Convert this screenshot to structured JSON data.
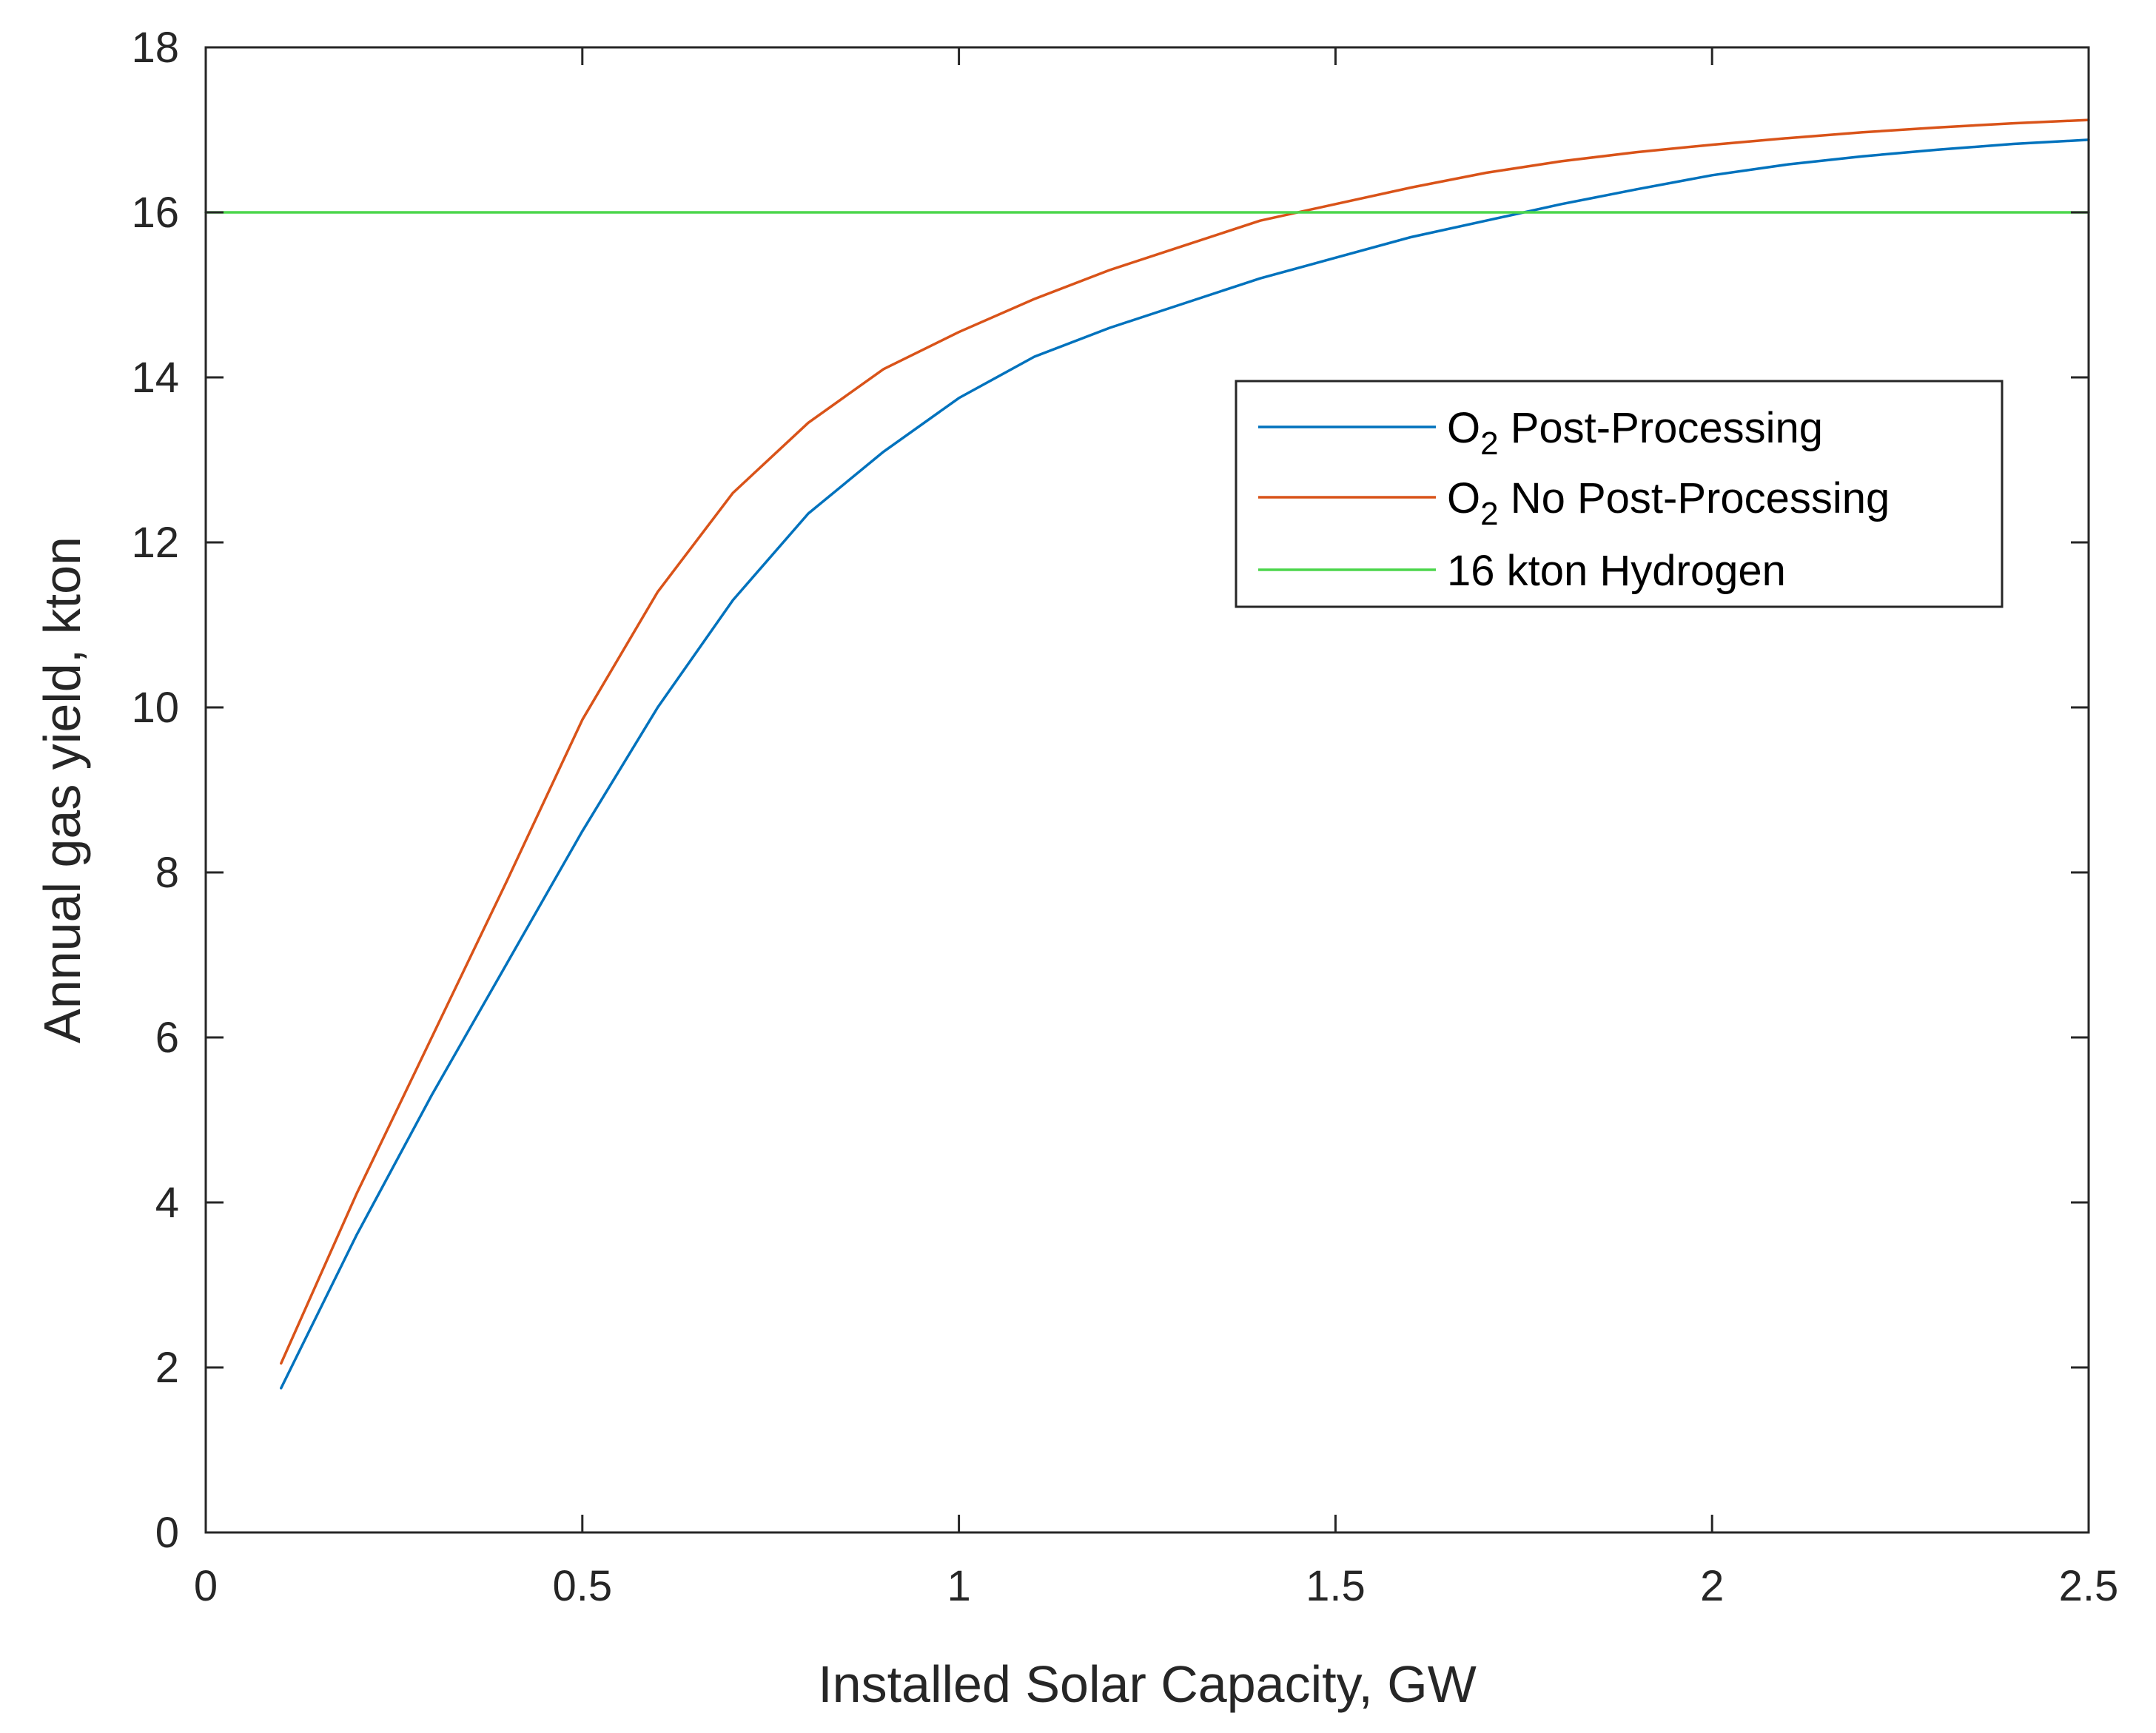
{
  "chart_data": {
    "type": "line",
    "title": "",
    "xlabel": "Installed Solar Capacity, GW",
    "ylabel": "Annual gas yield, kton",
    "xlim": [
      0,
      2.5
    ],
    "ylim": [
      0,
      18
    ],
    "xticks": [
      0,
      0.5,
      1,
      1.5,
      2,
      2.5
    ],
    "xtick_labels": [
      "0",
      "0.5",
      "1",
      "1.5",
      "2",
      "2.5"
    ],
    "yticks": [
      0,
      2,
      4,
      6,
      8,
      10,
      12,
      14,
      16,
      18
    ],
    "ytick_labels": [
      "0",
      "2",
      "4",
      "6",
      "8",
      "10",
      "12",
      "14",
      "16",
      "18"
    ],
    "grid": false,
    "legend_position": "upper-right",
    "series": [
      {
        "name": "O2 Post-Processing",
        "label_main": "O",
        "label_sub": "2",
        "label_rest": " Post-Processing",
        "color": "#0072BD",
        "x": [
          0.1,
          0.2,
          0.3,
          0.4,
          0.5,
          0.6,
          0.7,
          0.8,
          0.9,
          1.0,
          1.1,
          1.2,
          1.3,
          1.4,
          1.5,
          1.6,
          1.7,
          1.8,
          1.9,
          2.0,
          2.1,
          2.2,
          2.3,
          2.4,
          2.5
        ],
        "values": [
          1.75,
          3.6,
          5.3,
          6.9,
          8.5,
          10.0,
          11.3,
          12.35,
          13.1,
          13.75,
          14.25,
          14.6,
          14.9,
          15.2,
          15.45,
          15.7,
          15.9,
          16.1,
          16.28,
          16.45,
          16.58,
          16.68,
          16.76,
          16.83,
          16.88
        ]
      },
      {
        "name": "O2 No Post-Processing",
        "label_main": "O",
        "label_sub": "2",
        "label_rest": " No Post-Processing",
        "color": "#D95319",
        "x": [
          0.1,
          0.2,
          0.3,
          0.4,
          0.5,
          0.6,
          0.7,
          0.8,
          0.9,
          1.0,
          1.1,
          1.2,
          1.3,
          1.4,
          1.5,
          1.6,
          1.7,
          1.8,
          1.9,
          2.0,
          2.1,
          2.2,
          2.3,
          2.4,
          2.5
        ],
        "values": [
          2.05,
          4.1,
          6.0,
          7.9,
          9.85,
          11.4,
          12.6,
          13.45,
          14.1,
          14.55,
          14.95,
          15.3,
          15.6,
          15.9,
          16.1,
          16.3,
          16.48,
          16.62,
          16.73,
          16.82,
          16.9,
          16.97,
          17.03,
          17.08,
          17.12
        ]
      },
      {
        "name": "16 kton Hydrogen",
        "label_main": "16 kton Hydrogen",
        "label_sub": "",
        "label_rest": "",
        "color": "#4CD64C",
        "x": [
          0,
          2.5
        ],
        "values": [
          16,
          16
        ]
      }
    ]
  }
}
